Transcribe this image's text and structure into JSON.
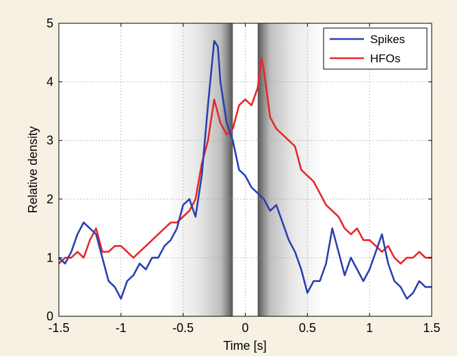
{
  "chart_data": {
    "type": "line",
    "title": "",
    "xlabel": "Time [s]",
    "ylabel": "Relative density",
    "xlim": [
      -1.5,
      1.5
    ],
    "ylim": [
      0,
      5
    ],
    "xticks": [
      -1.5,
      -1,
      -0.5,
      0,
      0.5,
      1,
      1.5
    ],
    "xtick_labels": [
      "-1.5",
      "-1",
      "-0.5",
      "0",
      "0.5",
      "1",
      "1.5"
    ],
    "yticks": [
      0,
      1,
      2,
      3,
      4,
      5
    ],
    "ytick_labels": [
      "0",
      "1",
      "2",
      "3",
      "4",
      "5"
    ],
    "grid": true,
    "legend_position": "top-right",
    "shaded_bands": [
      {
        "xmin": -0.6,
        "xmax": -0.1,
        "darkest_at": -0.1,
        "color": "#808080"
      },
      {
        "xmin": 0.1,
        "xmax": 0.6,
        "darkest_at": 0.1,
        "color": "#808080"
      }
    ],
    "series": [
      {
        "name": "Spikes",
        "color": "#2a3fb0",
        "x": [
          -1.5,
          -1.45,
          -1.4,
          -1.35,
          -1.3,
          -1.25,
          -1.2,
          -1.15,
          -1.1,
          -1.05,
          -1.0,
          -0.95,
          -0.9,
          -0.85,
          -0.8,
          -0.75,
          -0.7,
          -0.65,
          -0.6,
          -0.55,
          -0.5,
          -0.45,
          -0.4,
          -0.35,
          -0.3,
          -0.25,
          -0.22,
          -0.2,
          -0.15,
          -0.1,
          -0.05,
          0.0,
          0.05,
          0.1,
          0.15,
          0.2,
          0.25,
          0.3,
          0.35,
          0.4,
          0.45,
          0.5,
          0.55,
          0.6,
          0.65,
          0.7,
          0.75,
          0.8,
          0.85,
          0.9,
          0.95,
          1.0,
          1.05,
          1.1,
          1.15,
          1.2,
          1.25,
          1.3,
          1.35,
          1.4,
          1.45,
          1.5
        ],
        "values": [
          1.0,
          0.9,
          1.1,
          1.4,
          1.6,
          1.5,
          1.4,
          1.0,
          0.6,
          0.5,
          0.3,
          0.6,
          0.7,
          0.9,
          0.8,
          1.0,
          1.0,
          1.2,
          1.3,
          1.5,
          1.9,
          2.0,
          1.7,
          2.4,
          3.6,
          4.7,
          4.6,
          4.0,
          3.3,
          3.0,
          2.5,
          2.4,
          2.2,
          2.1,
          2.0,
          1.8,
          1.9,
          1.6,
          1.3,
          1.1,
          0.8,
          0.4,
          0.6,
          0.6,
          0.9,
          1.5,
          1.1,
          0.7,
          1.0,
          0.8,
          0.6,
          0.8,
          1.1,
          1.4,
          0.9,
          0.6,
          0.5,
          0.3,
          0.4,
          0.6,
          0.5,
          0.5
        ]
      },
      {
        "name": "HFOs",
        "color": "#e8262a",
        "x": [
          -1.5,
          -1.45,
          -1.4,
          -1.35,
          -1.3,
          -1.25,
          -1.2,
          -1.15,
          -1.1,
          -1.05,
          -1.0,
          -0.95,
          -0.9,
          -0.85,
          -0.8,
          -0.75,
          -0.7,
          -0.65,
          -0.6,
          -0.55,
          -0.5,
          -0.45,
          -0.4,
          -0.35,
          -0.3,
          -0.25,
          -0.2,
          -0.15,
          -0.1,
          -0.05,
          0.0,
          0.05,
          0.1,
          0.13,
          0.15,
          0.2,
          0.25,
          0.3,
          0.35,
          0.4,
          0.45,
          0.5,
          0.55,
          0.6,
          0.65,
          0.7,
          0.75,
          0.8,
          0.85,
          0.9,
          0.95,
          1.0,
          1.05,
          1.1,
          1.15,
          1.2,
          1.25,
          1.3,
          1.35,
          1.4,
          1.45,
          1.5
        ],
        "values": [
          0.9,
          1.0,
          1.0,
          1.1,
          1.0,
          1.3,
          1.5,
          1.1,
          1.1,
          1.2,
          1.2,
          1.1,
          1.0,
          1.1,
          1.2,
          1.3,
          1.4,
          1.5,
          1.6,
          1.6,
          1.7,
          1.8,
          2.0,
          2.6,
          3.0,
          3.7,
          3.3,
          3.1,
          3.2,
          3.6,
          3.7,
          3.6,
          3.9,
          4.4,
          4.2,
          3.4,
          3.2,
          3.1,
          3.0,
          2.9,
          2.5,
          2.4,
          2.3,
          2.1,
          1.9,
          1.8,
          1.7,
          1.5,
          1.4,
          1.5,
          1.3,
          1.3,
          1.2,
          1.1,
          1.2,
          1.0,
          0.9,
          1.0,
          1.0,
          1.1,
          1.0,
          1.0
        ]
      }
    ]
  }
}
